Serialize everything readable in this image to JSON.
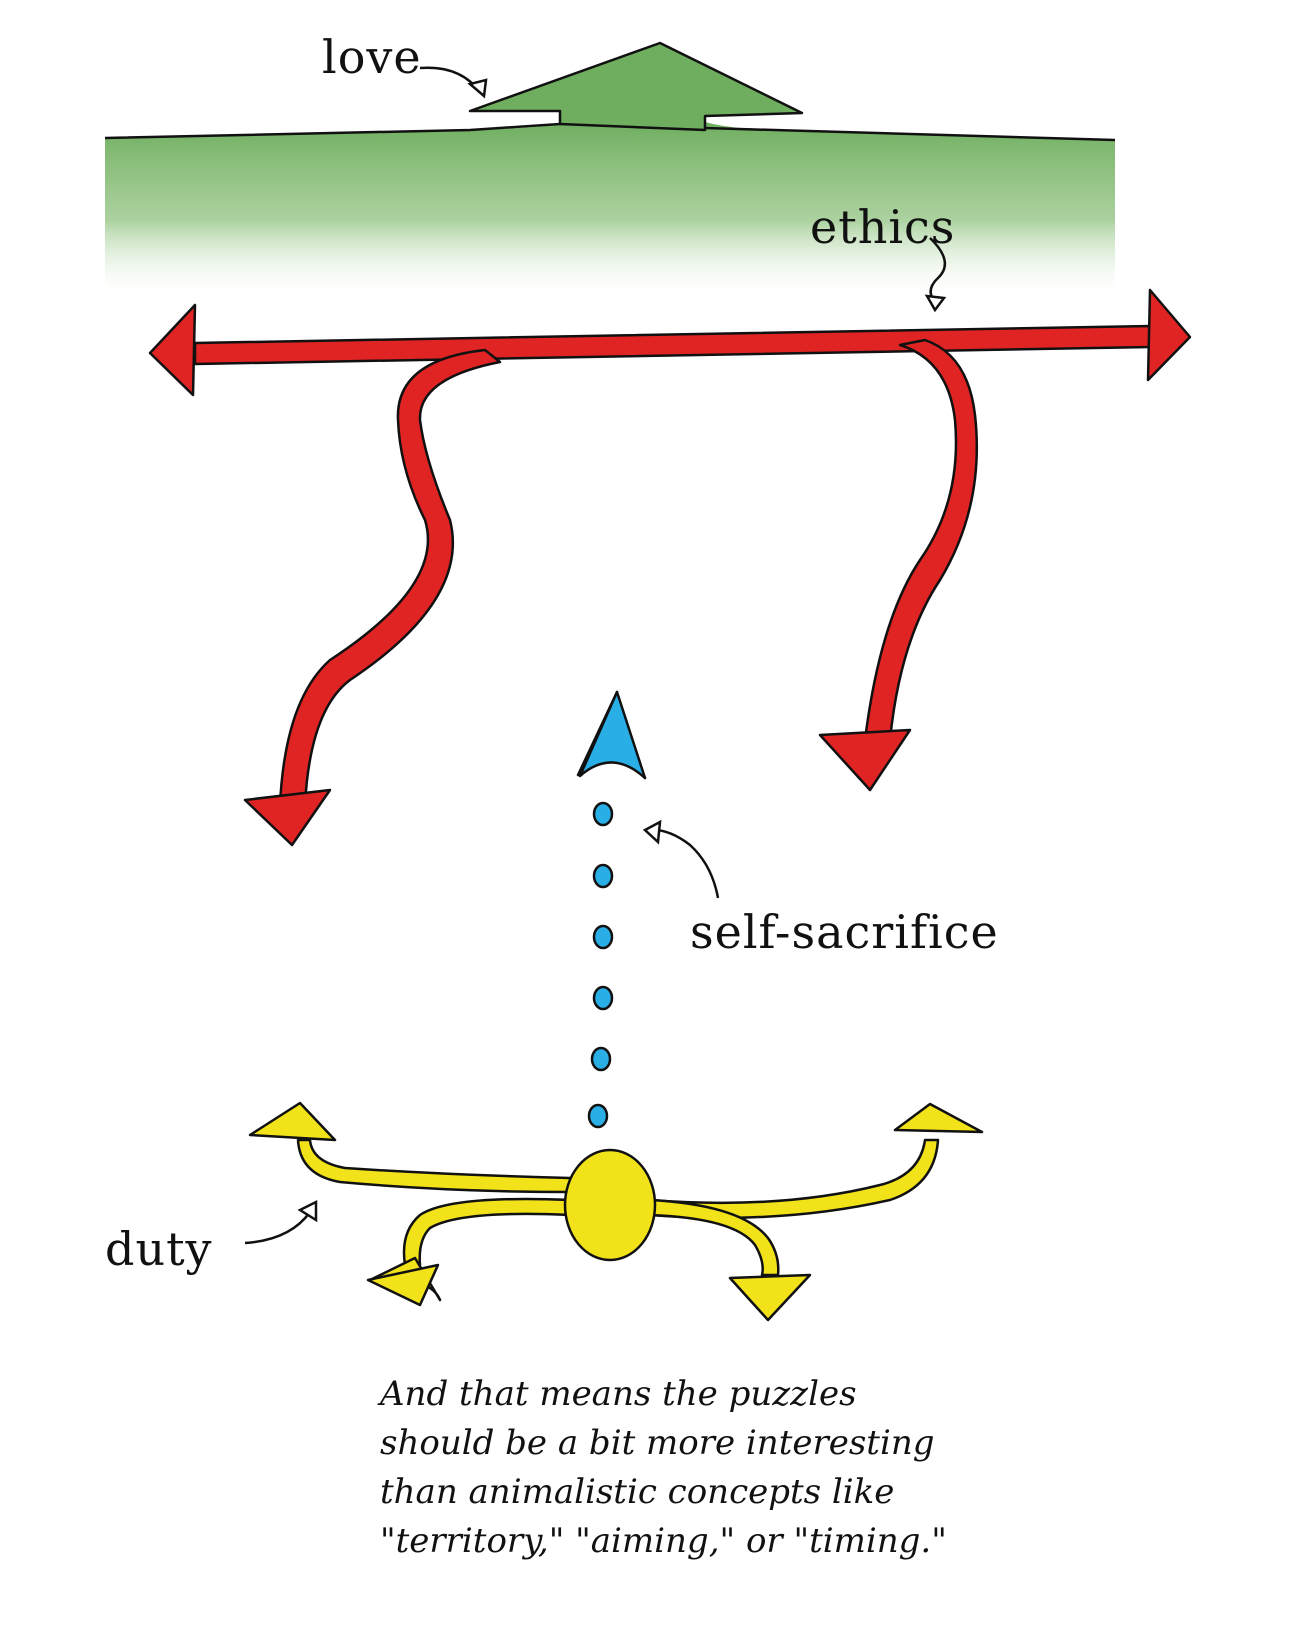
{
  "labels": {
    "love": "love",
    "ethics": "ethics",
    "self_sacrifice": "self-sacrifice",
    "duty": "duty"
  },
  "caption": {
    "lines": [
      "And that means the puzzles",
      "should be a bit more interesting",
      "than animalistic concepts like",
      "\"territory,\" \"aiming,\" or \"timing.\""
    ]
  },
  "colors": {
    "love": "#6fae5f",
    "ethics": "#e02424",
    "self_sacrifice": "#2aaee6",
    "duty": "#f2e21a",
    "ink": "#111111"
  }
}
